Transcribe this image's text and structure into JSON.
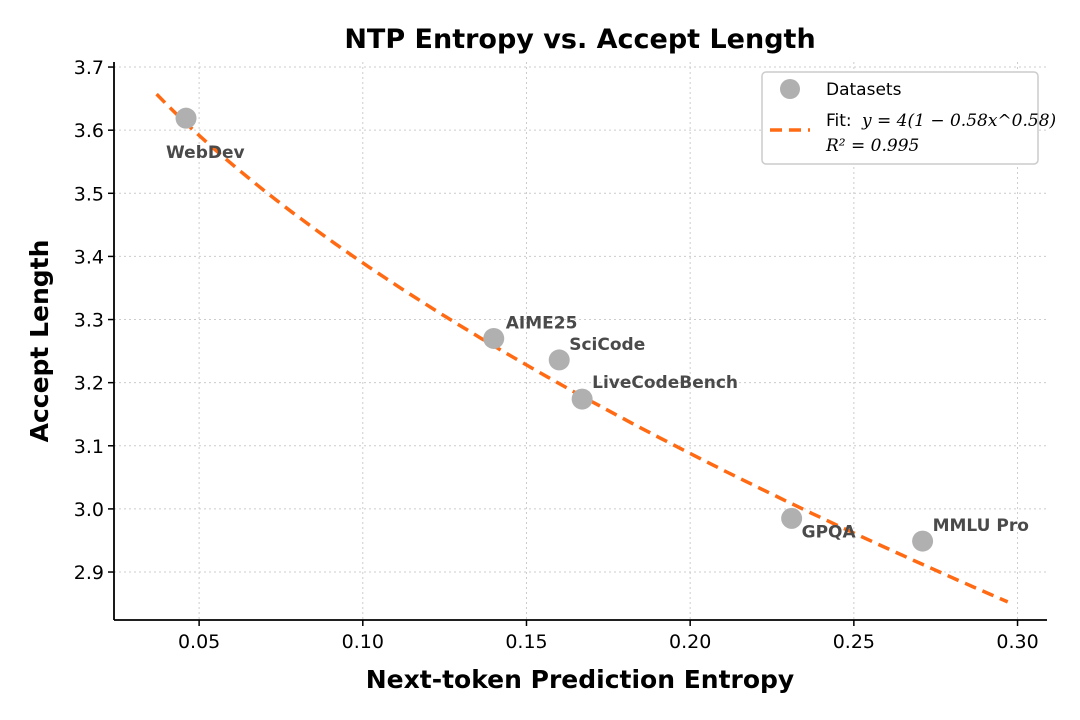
{
  "chart_data": {
    "type": "scatter",
    "title": "NTP Entropy vs. Accept Length",
    "xlabel": "Next-token Prediction Entropy",
    "ylabel": "Accept Length",
    "xlim": [
      0.024,
      0.309
    ],
    "ylim": [
      2.824,
      3.708
    ],
    "xticks": [
      "0.05",
      "0.10",
      "0.15",
      "0.20",
      "0.25",
      "0.30"
    ],
    "yticks": [
      "2.9",
      "3.0",
      "3.1",
      "3.2",
      "3.3",
      "3.4",
      "3.5",
      "3.6",
      "3.7"
    ],
    "grid": true,
    "points": [
      {
        "label": "WebDev",
        "x": 0.046,
        "y": 3.619
      },
      {
        "label": "AIME25",
        "x": 0.14,
        "y": 3.27
      },
      {
        "label": "SciCode",
        "x": 0.16,
        "y": 3.236
      },
      {
        "label": "LiveCodeBench",
        "x": 0.167,
        "y": 3.174
      },
      {
        "label": "GPQA",
        "x": 0.231,
        "y": 2.985
      },
      {
        "label": "MMLU Pro",
        "x": 0.271,
        "y": 2.949
      }
    ],
    "fit": {
      "a": 4,
      "b": 0.58,
      "c": 0.58,
      "xrange": [
        0.037,
        0.297
      ]
    },
    "legend": {
      "placement": "top-right",
      "datasets": "Datasets",
      "fit_prefix": "Fit:",
      "fit_formula": "y = 4(1 − 0.58x^0.58)",
      "r2": "R² = 0.995"
    },
    "colors": {
      "points": "#b0b0b0",
      "fit": "#ff6a13"
    }
  }
}
